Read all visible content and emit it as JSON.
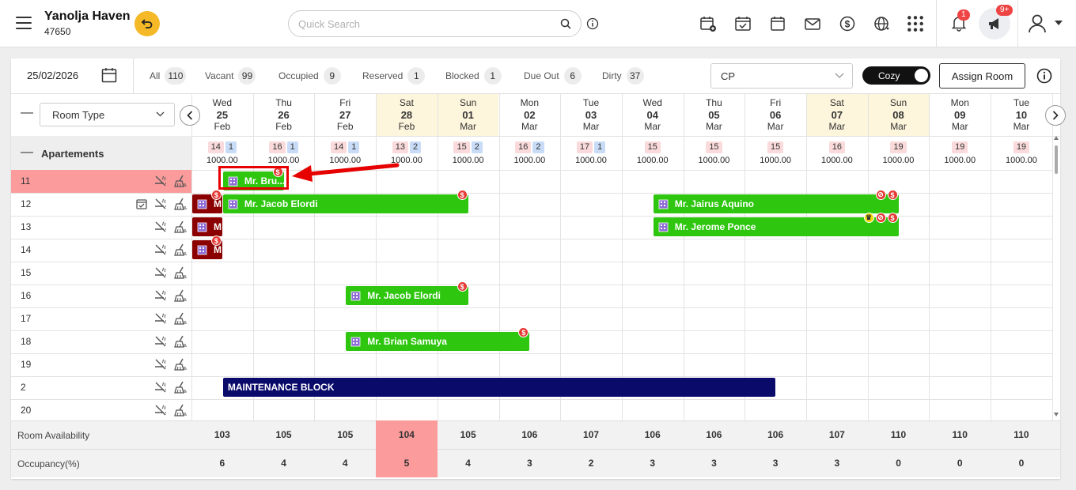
{
  "topbar": {
    "property_name": "Yanolja Haven",
    "property_id": "47650",
    "search_placeholder": "Quick Search",
    "notifications_badge": "1",
    "announcements_badge": "9+"
  },
  "filters": {
    "date": "25/02/2026",
    "items": [
      {
        "label": "All",
        "count": "110"
      },
      {
        "label": "Vacant",
        "count": "99"
      },
      {
        "label": "Occupied",
        "count": "9"
      },
      {
        "label": "Reserved",
        "count": "1"
      },
      {
        "label": "Blocked",
        "count": "1"
      },
      {
        "label": "Due Out",
        "count": "6"
      },
      {
        "label": "Dirty",
        "count": "37"
      }
    ],
    "rate_plan": "CP",
    "view_toggle": "Cozy",
    "assign_room": "Assign Room"
  },
  "grid": {
    "room_type_select": "Room Type",
    "group_name": "Apartements",
    "days": [
      {
        "dow": "Wed",
        "day": "25",
        "mon": "Feb",
        "weekend": false,
        "a": "14",
        "b": "1",
        "rate": "1000.00",
        "avail": "103",
        "occ": "6",
        "hl": false
      },
      {
        "dow": "Thu",
        "day": "26",
        "mon": "Feb",
        "weekend": false,
        "a": "16",
        "b": "1",
        "rate": "1000.00",
        "avail": "105",
        "occ": "4",
        "hl": false
      },
      {
        "dow": "Fri",
        "day": "27",
        "mon": "Feb",
        "weekend": false,
        "a": "14",
        "b": "1",
        "rate": "1000.00",
        "avail": "105",
        "occ": "4",
        "hl": false
      },
      {
        "dow": "Sat",
        "day": "28",
        "mon": "Feb",
        "weekend": true,
        "a": "13",
        "b": "2",
        "rate": "1000.00",
        "avail": "104",
        "occ": "5",
        "hl": true
      },
      {
        "dow": "Sun",
        "day": "01",
        "mon": "Mar",
        "weekend": true,
        "a": "15",
        "b": "2",
        "rate": "1000.00",
        "avail": "105",
        "occ": "4",
        "hl": false
      },
      {
        "dow": "Mon",
        "day": "02",
        "mon": "Mar",
        "weekend": false,
        "a": "16",
        "b": "2",
        "rate": "1000.00",
        "avail": "106",
        "occ": "3",
        "hl": false
      },
      {
        "dow": "Tue",
        "day": "03",
        "mon": "Mar",
        "weekend": false,
        "a": "17",
        "b": "1",
        "rate": "1000.00",
        "avail": "107",
        "occ": "2",
        "hl": false
      },
      {
        "dow": "Wed",
        "day": "04",
        "mon": "Mar",
        "weekend": false,
        "a": "15",
        "b": "",
        "rate": "1000.00",
        "avail": "106",
        "occ": "3",
        "hl": false
      },
      {
        "dow": "Thu",
        "day": "05",
        "mon": "Mar",
        "weekend": false,
        "a": "15",
        "b": "",
        "rate": "1000.00",
        "avail": "106",
        "occ": "3",
        "hl": false
      },
      {
        "dow": "Fri",
        "day": "06",
        "mon": "Mar",
        "weekend": false,
        "a": "15",
        "b": "",
        "rate": "1000.00",
        "avail": "106",
        "occ": "3",
        "hl": false
      },
      {
        "dow": "Sat",
        "day": "07",
        "mon": "Mar",
        "weekend": true,
        "a": "16",
        "b": "",
        "rate": "1000.00",
        "avail": "107",
        "occ": "3",
        "hl": false
      },
      {
        "dow": "Sun",
        "day": "08",
        "mon": "Mar",
        "weekend": true,
        "a": "19",
        "b": "",
        "rate": "1000.00",
        "avail": "110",
        "occ": "0",
        "hl": false
      },
      {
        "dow": "Mon",
        "day": "09",
        "mon": "Mar",
        "weekend": false,
        "a": "19",
        "b": "",
        "rate": "1000.00",
        "avail": "110",
        "occ": "0",
        "hl": false
      },
      {
        "dow": "Tue",
        "day": "10",
        "mon": "Mar",
        "weekend": false,
        "a": "19",
        "b": "",
        "rate": "1000.00",
        "avail": "110",
        "occ": "0",
        "hl": false
      }
    ],
    "rooms": [
      {
        "number": "11",
        "highlight": true,
        "checked": false
      },
      {
        "number": "12",
        "highlight": false,
        "checked": true
      },
      {
        "number": "13",
        "highlight": false,
        "checked": false
      },
      {
        "number": "14",
        "highlight": false,
        "checked": false
      },
      {
        "number": "15",
        "highlight": false,
        "checked": false
      },
      {
        "number": "16",
        "highlight": false,
        "checked": false
      },
      {
        "number": "17",
        "highlight": false,
        "checked": false
      },
      {
        "number": "18",
        "highlight": false,
        "checked": false
      },
      {
        "number": "19",
        "highlight": false,
        "checked": false
      },
      {
        "number": "2",
        "highlight": false,
        "checked": false
      },
      {
        "number": "20",
        "highlight": false,
        "checked": false
      }
    ],
    "bookings": [
      {
        "row": 0,
        "start": 0.5,
        "end": 1.5,
        "label": "Mr. Bru...",
        "color": "green",
        "icons": [
          "dollar"
        ],
        "annotated": true
      },
      {
        "row": 1,
        "start": 0.0,
        "end": 0.5,
        "label": "M",
        "color": "dred",
        "icons": [
          "dollar"
        ],
        "annotated": false
      },
      {
        "row": 1,
        "start": 0.5,
        "end": 4.5,
        "label": "Mr. Jacob Elordi",
        "color": "green",
        "icons": [
          "dollar"
        ],
        "annotated": false
      },
      {
        "row": 1,
        "start": 7.5,
        "end": 11.5,
        "label": "Mr. Jairus Aquino",
        "color": "green",
        "icons": [
          "no-smoke",
          "dollar"
        ],
        "annotated": false
      },
      {
        "row": 2,
        "start": 0.0,
        "end": 0.5,
        "label": "M",
        "color": "dred",
        "icons": [],
        "annotated": false
      },
      {
        "row": 2,
        "start": 7.5,
        "end": 11.5,
        "label": "Mr. Jerome Ponce",
        "color": "green",
        "icons": [
          "crown",
          "no-smoke",
          "dollar"
        ],
        "annotated": false
      },
      {
        "row": 3,
        "start": 0.0,
        "end": 0.5,
        "label": "M",
        "color": "dred",
        "icons": [
          "dollar"
        ],
        "annotated": false
      },
      {
        "row": 5,
        "start": 2.5,
        "end": 4.5,
        "label": "Mr. Jacob Elordi",
        "color": "green",
        "icons": [
          "dollar"
        ],
        "annotated": false
      },
      {
        "row": 7,
        "start": 2.5,
        "end": 5.5,
        "label": "Mr. Brian Samuya",
        "color": "green",
        "icons": [
          "dollar"
        ],
        "annotated": false
      },
      {
        "row": 9,
        "start": 0.5,
        "end": 9.5,
        "label": "MAINTENANCE BLOCK",
        "color": "navy",
        "icons": [],
        "annotated": false
      }
    ],
    "footer": {
      "availability_label": "Room Availability",
      "occupancy_label": "Occupancy(%)"
    }
  },
  "annotation_color": "#e60000"
}
